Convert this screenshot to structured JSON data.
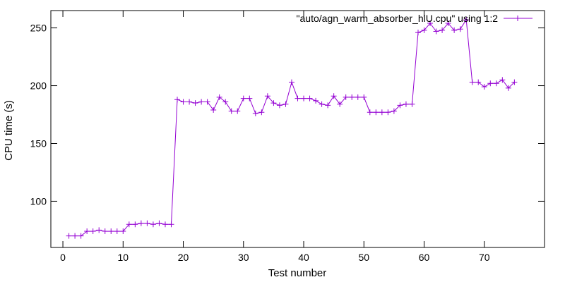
{
  "chart_data": {
    "type": "line",
    "title": "",
    "xlabel": "Test number",
    "ylabel": "CPU time (s)",
    "xlim": [
      -2,
      80
    ],
    "ylim": [
      60,
      265
    ],
    "x_ticks": [
      0,
      10,
      20,
      30,
      40,
      50,
      60,
      70
    ],
    "y_ticks": [
      100,
      150,
      200,
      250
    ],
    "x_tick_labels": [
      "0",
      "10",
      "20",
      "30",
      "40",
      "50",
      "60",
      "70"
    ],
    "y_tick_labels": [
      "100",
      "150",
      "200",
      "250"
    ],
    "grid": false,
    "legend_position": "top-right",
    "line_color": "#9400d3",
    "series": [
      {
        "name": "\"auto/agn_warm_absorber_hiU.cpu\" using 1:2",
        "x": [
          1,
          2,
          3,
          4,
          5,
          6,
          7,
          8,
          9,
          10,
          11,
          12,
          13,
          14,
          15,
          16,
          17,
          18,
          19,
          20,
          21,
          22,
          23,
          24,
          25,
          26,
          27,
          28,
          29,
          30,
          31,
          32,
          33,
          34,
          35,
          36,
          37,
          38,
          39,
          40,
          41,
          42,
          43,
          44,
          45,
          46,
          47,
          48,
          49,
          50,
          51,
          52,
          53,
          54,
          55,
          56,
          57,
          58,
          59,
          60,
          61,
          62,
          63,
          64,
          65,
          66,
          67,
          68,
          69,
          70,
          71,
          72,
          73,
          74,
          75
        ],
        "y": [
          70,
          70,
          70,
          74,
          74,
          75,
          74,
          74,
          74,
          74,
          80,
          80,
          81,
          81,
          80,
          81,
          80,
          80,
          188,
          186,
          186,
          185,
          186,
          186,
          179,
          190,
          186,
          178,
          178,
          189,
          189,
          176,
          177,
          191,
          185,
          183,
          184,
          203,
          189,
          189,
          189,
          187,
          184,
          183,
          191,
          184,
          190,
          190,
          190,
          190,
          177,
          177,
          177,
          177,
          178,
          183,
          184,
          184,
          246,
          248,
          254,
          247,
          248,
          254,
          248,
          249,
          257,
          203,
          203,
          199,
          202,
          202,
          205,
          198,
          203
        ]
      }
    ]
  }
}
